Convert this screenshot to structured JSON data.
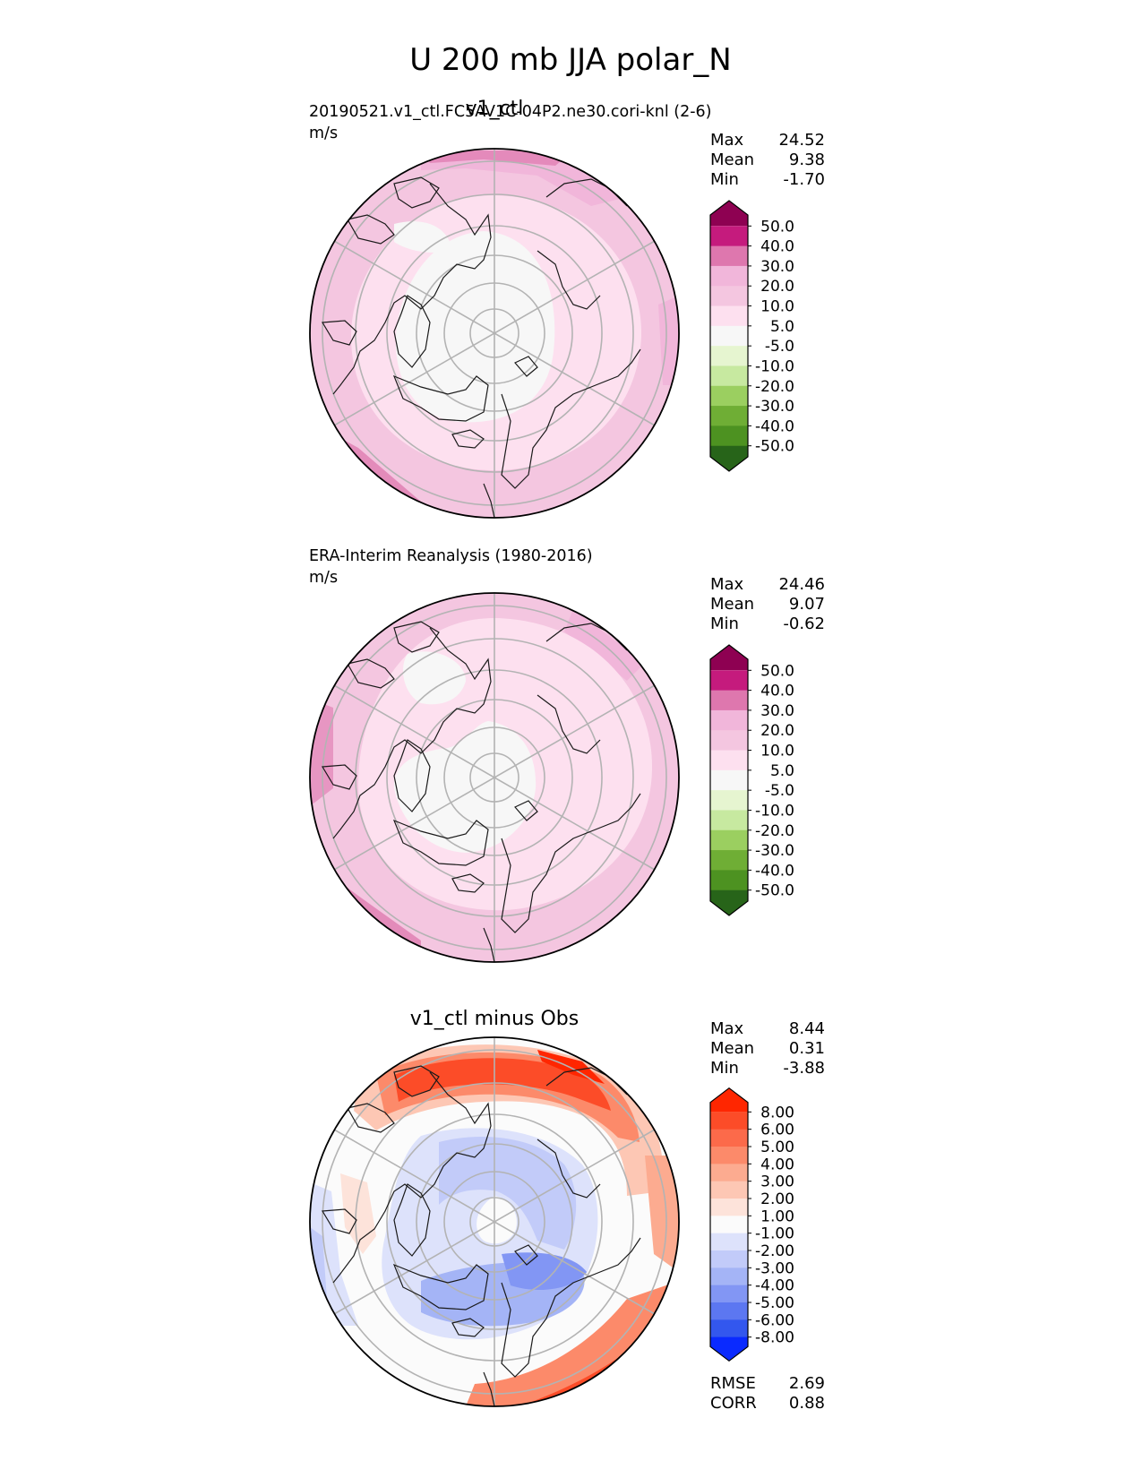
{
  "figure": {
    "title": "U 200 mb JJA polar_N"
  },
  "chart_data": [
    {
      "type": "heatmap",
      "projection": "north-polar-stereographic",
      "panel_title": "v1_ctl",
      "dataset_label": "20190521.v1_ctl.FC5AV1C-04P2.ne30.cori-knl (2-6)",
      "units": "m/s",
      "stats": [
        {
          "label": "Max",
          "value": "24.52"
        },
        {
          "label": "Mean",
          "value": "9.38"
        },
        {
          "label": "Min",
          "value": "-1.70"
        }
      ],
      "colorbar": {
        "extend": "both",
        "tick_labels": [
          "50.0",
          "40.0",
          "30.0",
          "20.0",
          "10.0",
          "5.0",
          "-5.0",
          "-10.0",
          "-20.0",
          "-30.0",
          "-40.0",
          "-50.0"
        ],
        "colors": [
          "#8e0152",
          "#c51b7d",
          "#de77ae",
          "#f1b6da",
          "#f4c6e0",
          "#fde0ef",
          "#f7f7f7",
          "#e6f5d0",
          "#c7e9a0",
          "#9bcf60",
          "#6fae35",
          "#4d9221",
          "#276419"
        ]
      },
      "field_pattern": "weak winds (-5 to 5 m/s) over the polar cap, ring of 5-10 m/s, 10-30 m/s near the map edge"
    },
    {
      "type": "heatmap",
      "projection": "north-polar-stereographic",
      "panel_title": "",
      "dataset_label": "ERA-Interim Reanalysis (1980-2016)",
      "units": "m/s",
      "stats": [
        {
          "label": "Max",
          "value": "24.46"
        },
        {
          "label": "Mean",
          "value": "9.07"
        },
        {
          "label": "Min",
          "value": "-0.62"
        }
      ],
      "colorbar": {
        "extend": "both",
        "tick_labels": [
          "50.0",
          "40.0",
          "30.0",
          "20.0",
          "10.0",
          "5.0",
          "-5.0",
          "-10.0",
          "-20.0",
          "-30.0",
          "-40.0",
          "-50.0"
        ],
        "colors": [
          "#8e0152",
          "#c51b7d",
          "#de77ae",
          "#f1b6da",
          "#f4c6e0",
          "#fde0ef",
          "#f7f7f7",
          "#e6f5d0",
          "#c7e9a0",
          "#9bcf60",
          "#6fae35",
          "#4d9221",
          "#276419"
        ]
      },
      "field_pattern": "weak winds over Greenland/Canadian Arctic sector, 5-10 m/s over most of the cap, 10-30 m/s near the edge"
    },
    {
      "type": "heatmap",
      "projection": "north-polar-stereographic",
      "panel_title": "v1_ctl minus Obs",
      "dataset_label": "",
      "units": "",
      "stats": [
        {
          "label": "Max",
          "value": "8.44"
        },
        {
          "label": "Mean",
          "value": "0.31"
        },
        {
          "label": "Min",
          "value": "-3.88"
        }
      ],
      "extra_stats": [
        {
          "label": "RMSE",
          "value": "2.69"
        },
        {
          "label": "CORR",
          "value": "0.88"
        }
      ],
      "colorbar": {
        "extend": "both",
        "tick_labels": [
          "8.00",
          "6.00",
          "5.00",
          "4.00",
          "3.00",
          "2.00",
          "1.00",
          "-1.00",
          "-2.00",
          "-3.00",
          "-4.00",
          "-5.00",
          "-6.00",
          "-8.00"
        ],
        "colors": [
          "#ff2600",
          "#fc4c28",
          "#fc6a4a",
          "#fc8a6a",
          "#fcab90",
          "#fdc7b4",
          "#fde3da",
          "#fbfbfb",
          "#dde2fb",
          "#c2cbf9",
          "#a4b4f6",
          "#8296f4",
          "#5c77f1",
          "#3357ee",
          "#0a2aff"
        ]
      },
      "field_pattern": "positive differences (2-8 m/s) in a band over the top and lower-right edge, negative differences (-1 to -4 m/s) over the polar cap, near zero elsewhere"
    }
  ]
}
